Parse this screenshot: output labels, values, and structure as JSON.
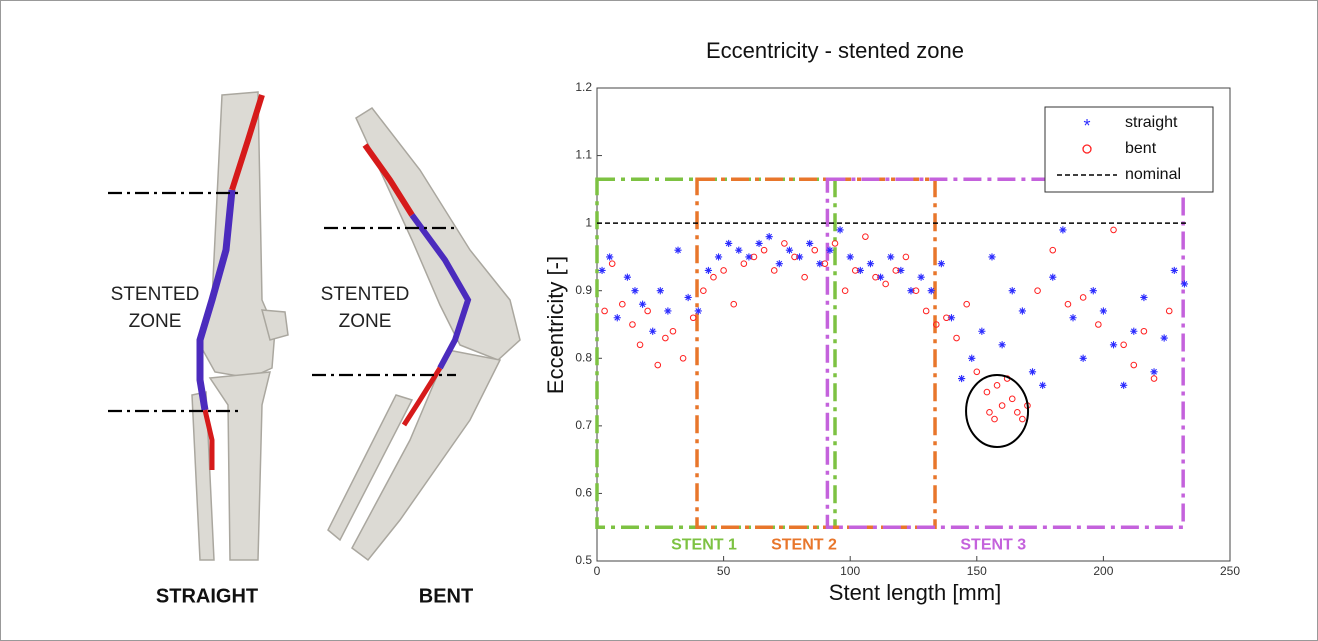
{
  "chart_data": {
    "type": "scatter",
    "title": "Eccentricity - stented zone",
    "xlabel": "Stent length [mm]",
    "ylabel": "Eccentricity [-]",
    "xlim": [
      0,
      250
    ],
    "xticks": [
      0,
      50,
      100,
      150,
      200,
      250
    ],
    "ylim": [
      0.5,
      1.2
    ],
    "yticks": [
      0.5,
      0.6,
      0.7,
      0.8,
      0.9,
      1,
      1.1,
      1.2
    ],
    "grid": false,
    "legend": "upper right",
    "series": [
      {
        "name": "straight",
        "color": "#2b2bff",
        "marker": "asterisk",
        "x": [
          2,
          5,
          8,
          12,
          15,
          18,
          22,
          25,
          28,
          32,
          36,
          40,
          44,
          48,
          52,
          56,
          60,
          64,
          68,
          72,
          76,
          80,
          84,
          88,
          92,
          96,
          100,
          104,
          108,
          112,
          116,
          120,
          124,
          128,
          132,
          136,
          140,
          144,
          148,
          152,
          156,
          160,
          164,
          168,
          172,
          176,
          180,
          184,
          188,
          192,
          196,
          200,
          204,
          208,
          212,
          216,
          220,
          224,
          228,
          232
        ],
        "values": [
          0.93,
          0.95,
          0.86,
          0.92,
          0.9,
          0.88,
          0.84,
          0.9,
          0.87,
          0.96,
          0.89,
          0.87,
          0.93,
          0.95,
          0.97,
          0.96,
          0.95,
          0.97,
          0.98,
          0.94,
          0.96,
          0.95,
          0.97,
          0.94,
          0.96,
          0.99,
          0.95,
          0.93,
          0.94,
          0.92,
          0.95,
          0.93,
          0.9,
          0.92,
          0.9,
          0.94,
          0.86,
          0.77,
          0.8,
          0.84,
          0.95,
          0.82,
          0.9,
          0.87,
          0.78,
          0.76,
          0.92,
          0.99,
          0.86,
          0.8,
          0.9,
          0.87,
          0.82,
          0.76,
          0.84,
          0.89,
          0.78,
          0.83,
          0.93,
          0.91
        ]
      },
      {
        "name": "bent",
        "color": "#ff2020",
        "marker": "circle",
        "x": [
          3,
          6,
          10,
          14,
          17,
          20,
          24,
          27,
          30,
          34,
          38,
          42,
          46,
          50,
          54,
          58,
          62,
          66,
          70,
          74,
          78,
          82,
          86,
          90,
          94,
          98,
          102,
          106,
          110,
          114,
          118,
          122,
          126,
          130,
          134,
          138,
          142,
          146,
          150,
          154,
          155,
          157,
          158,
          160,
          162,
          164,
          166,
          168,
          170,
          174,
          180,
          186,
          192,
          198,
          204,
          208,
          212,
          216,
          220,
          226
        ],
        "values": [
          0.87,
          0.94,
          0.88,
          0.85,
          0.82,
          0.87,
          0.79,
          0.83,
          0.84,
          0.8,
          0.86,
          0.9,
          0.92,
          0.93,
          0.88,
          0.94,
          0.95,
          0.96,
          0.93,
          0.97,
          0.95,
          0.92,
          0.96,
          0.94,
          0.97,
          0.9,
          0.93,
          0.98,
          0.92,
          0.91,
          0.93,
          0.95,
          0.9,
          0.87,
          0.85,
          0.86,
          0.83,
          0.88,
          0.78,
          0.75,
          0.72,
          0.71,
          0.76,
          0.73,
          0.77,
          0.74,
          0.72,
          0.71,
          0.73,
          0.9,
          0.96,
          0.88,
          0.89,
          0.85,
          0.99,
          0.82,
          0.79,
          0.84,
          0.77,
          0.87
        ]
      },
      {
        "name": "nominal",
        "color": "#000000",
        "linestyle": "dashed",
        "x": [
          0,
          233
        ],
        "values": [
          1,
          1
        ]
      }
    ],
    "regions": [
      {
        "label": "STENT 1",
        "color": "#7dc242",
        "x": [
          0,
          94
        ],
        "y": [
          0.55,
          1.065
        ]
      },
      {
        "label": "STENT 2",
        "color": "#e8762b",
        "x": [
          39.5,
          133.5
        ],
        "y": [
          0.55,
          1.065
        ]
      },
      {
        "label": "STENT 3",
        "color": "#c462dc",
        "x": [
          91,
          231.5
        ],
        "y": [
          0.55,
          1.065
        ]
      }
    ],
    "highlight": {
      "x": 158,
      "y": 0.722
    }
  },
  "illustration": {
    "straight_zone_label": [
      "STENTED",
      "ZONE"
    ],
    "bent_zone_label": [
      "STENTED",
      "ZONE"
    ],
    "straight_caption": "STRAIGHT",
    "bent_caption": "BENT"
  }
}
